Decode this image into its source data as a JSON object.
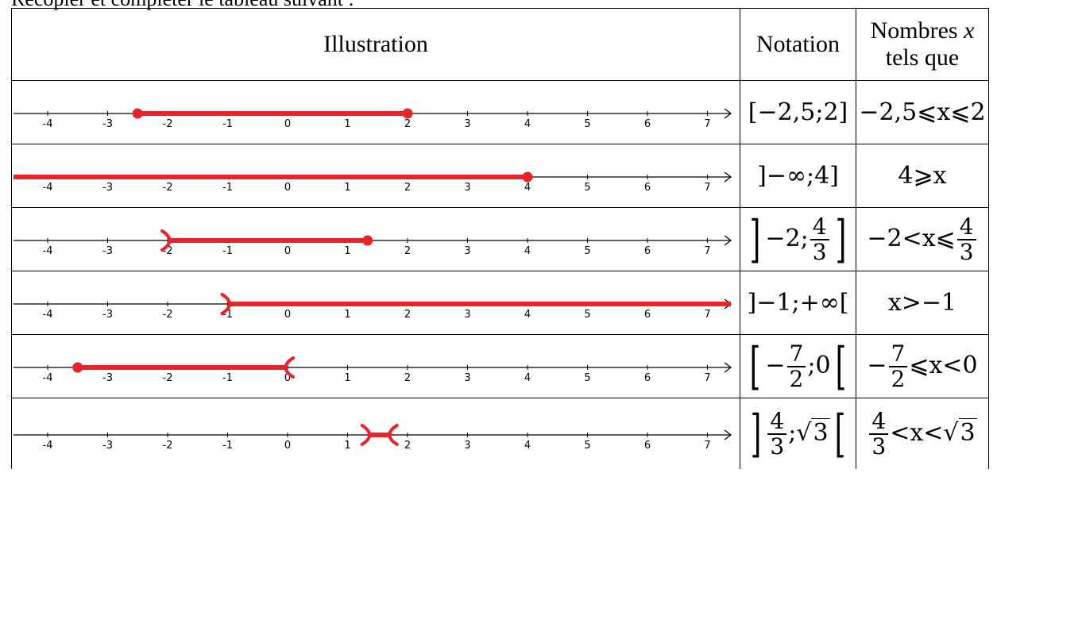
{
  "intro": "Recopier et compléter le tableau suivant :",
  "headers": {
    "illustration": "Illustration",
    "notation": "Notation",
    "numbers_line1": "Nombres",
    "numbers_var": "x",
    "numbers_line2": "tels que"
  },
  "axis": {
    "ticks": [
      "-4",
      "-3",
      "-2",
      "-1",
      "0",
      "1",
      "2",
      "3",
      "4",
      "5",
      "6",
      "7"
    ],
    "min": -4,
    "max": 7
  },
  "colors": {
    "interval": "#e8232a",
    "axis": "#000000"
  },
  "rows": [
    {
      "interval": {
        "from": -2.5,
        "to": 2,
        "from_end": "closed",
        "to_end": "closed"
      },
      "notation": {
        "open": "[",
        "lower": "−2,5",
        "sep": ";",
        "upper": "2",
        "close": "]"
      },
      "condition": {
        "text": "−2,5⩽x⩽2"
      }
    },
    {
      "interval": {
        "from": null,
        "to": 4,
        "from_end": "infinite",
        "to_end": "closed"
      },
      "notation": {
        "open": "]",
        "lower": "−∞",
        "sep": ";",
        "upper": "4",
        "close": "]"
      },
      "condition": {
        "text": "4⩾x"
      }
    },
    {
      "interval": {
        "from": -2,
        "to": 1.3333,
        "from_end": "open",
        "to_end": "closed"
      },
      "notation": {
        "open": "]",
        "lower": "−2",
        "sep": ";",
        "upper_num": "4",
        "upper_den": "3",
        "close": "]"
      },
      "condition": {
        "left": "−2<x⩽",
        "num": "4",
        "den": "3"
      }
    },
    {
      "interval": {
        "from": -1,
        "to": null,
        "from_end": "open",
        "to_end": "infinite"
      },
      "notation": {
        "open": "]",
        "lower": "−1",
        "sep": ";",
        "upper": "+∞",
        "close": "["
      },
      "condition": {
        "text": "x>−1"
      }
    },
    {
      "interval": {
        "from": -3.5,
        "to": 0,
        "from_end": "closed",
        "to_end": "open"
      },
      "notation": {
        "open": "[",
        "minus": "−",
        "lower_num": "7",
        "lower_den": "2",
        "sep": ";",
        "upper": "0",
        "close": "["
      },
      "condition": {
        "minus": "−",
        "num": "7",
        "den": "2",
        "right": "⩽x<0"
      }
    },
    {
      "interval": {
        "from": 1.3333,
        "to": 1.732,
        "from_end": "open",
        "to_end": "open"
      },
      "notation": {
        "open": "]",
        "lower_num": "4",
        "lower_den": "3",
        "sep": ";",
        "upper_root": "3",
        "close": "["
      },
      "condition": {
        "num": "4",
        "den": "3",
        "middle": "<x<",
        "root": "3"
      }
    }
  ]
}
